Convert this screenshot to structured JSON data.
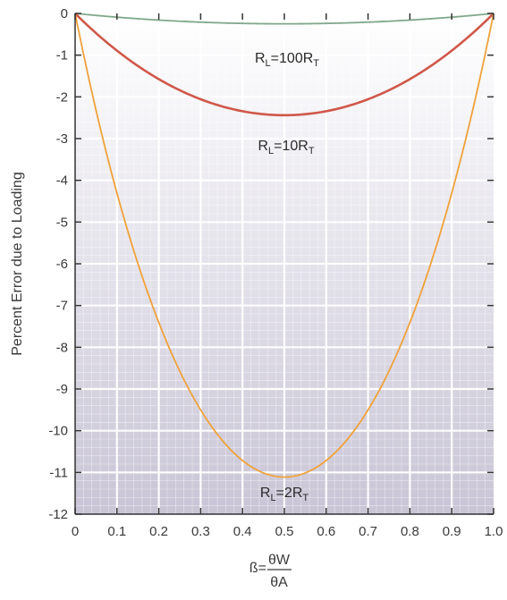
{
  "chart_data": {
    "type": "line",
    "title": "",
    "ylabel": "Percent Error due to Loading",
    "xlabel": {
      "prefix": "ß=",
      "numerator": "θW",
      "denominator": "θA"
    },
    "xlim": [
      0,
      1
    ],
    "ylim": [
      -12,
      0
    ],
    "x_ticks": [
      "0",
      "0.1",
      "0.2",
      "0.3",
      "0.4",
      "0.5",
      "0.6",
      "0.7",
      "0.8",
      "0.9",
      "1.0"
    ],
    "y_ticks": [
      "0",
      "-1",
      "-2",
      "-3",
      "-4",
      "-5",
      "-6",
      "-7",
      "-8",
      "-9",
      "-10",
      "-11",
      "-12"
    ],
    "grid": true,
    "series": [
      {
        "name": "RL=100RT",
        "label": {
          "main1": "R",
          "sub1": "L",
          "main2": "=100R",
          "sub2": "T"
        },
        "load_ratio": 100,
        "color": "#7fa88a",
        "x": [
          0,
          0.1,
          0.2,
          0.3,
          0.4,
          0.5,
          0.6,
          0.7,
          0.8,
          0.9,
          1.0
        ],
        "y": [
          0,
          -0.2,
          -0.35,
          -0.44,
          -0.48,
          -0.5,
          -0.48,
          -0.44,
          -0.35,
          -0.2,
          0
        ]
      },
      {
        "name": "RL=10RT",
        "label": {
          "main1": "R",
          "sub1": "L",
          "main2": "=10R",
          "sub2": "T"
        },
        "load_ratio": 10,
        "color": "#d0574a",
        "x": [
          0,
          0.1,
          0.2,
          0.3,
          0.4,
          0.5,
          0.6,
          0.7,
          0.8,
          0.9,
          1.0
        ],
        "y": [
          0,
          -1.2,
          -2.0,
          -2.4,
          -2.6,
          -2.7,
          -2.6,
          -2.4,
          -2.0,
          -1.2,
          0
        ]
      },
      {
        "name": "RL=2RT",
        "label": {
          "main1": "R",
          "sub1": "L",
          "main2": "=2R",
          "sub2": "T"
        },
        "load_ratio": 2,
        "color": "#f0a23a",
        "x": [
          0,
          0.1,
          0.2,
          0.3,
          0.4,
          0.5,
          0.6,
          0.7,
          0.8,
          0.9,
          1.0
        ],
        "y": [
          0,
          -4.3,
          -7.4,
          -9.5,
          -10.8,
          -11.1,
          -10.8,
          -9.5,
          -7.4,
          -4.3,
          0
        ]
      }
    ],
    "colors": {
      "plot_top": "#ffffff",
      "plot_bottom": "#c9c5d6",
      "grid": "#ffffff",
      "axis": "#333333"
    }
  }
}
